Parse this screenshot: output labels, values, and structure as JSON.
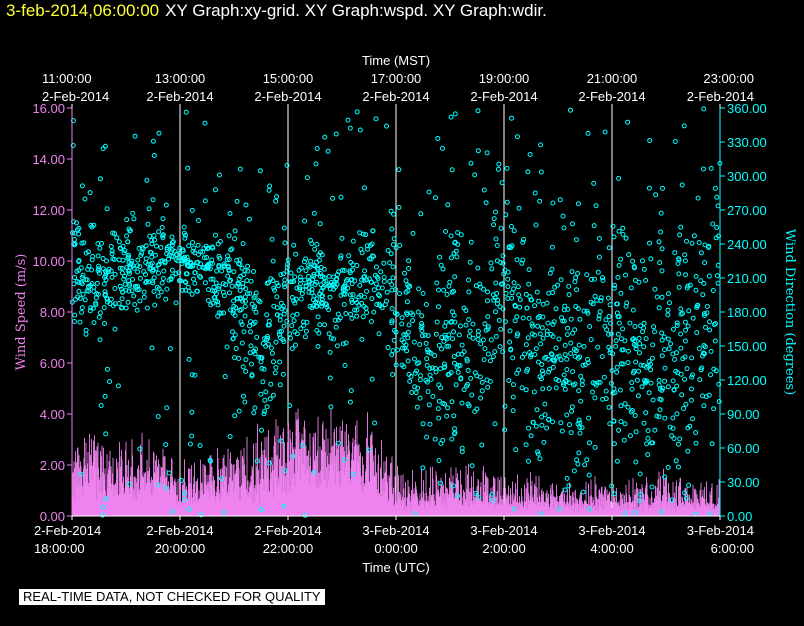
{
  "header": {
    "timestamp": "3-feb-2014,06:00:00",
    "graphs": "XY Graph:xy-grid.  XY Graph:wspd.  XY Graph:wdir."
  },
  "disclaimer": "REAL-TIME DATA, NOT CHECKED FOR QUALITY",
  "colors": {
    "background": "#000000",
    "speed": "#ee82ee",
    "direction": "#00ffff",
    "timestamp": "#ffff33",
    "text": "#ffffff"
  },
  "chart_data": {
    "type": "scatter",
    "top_axis": {
      "label": "Time (MST)",
      "ticks": [
        {
          "time": "11:00:00",
          "date": "2-Feb-2014"
        },
        {
          "time": "13:00:00",
          "date": "2-Feb-2014"
        },
        {
          "time": "15:00:00",
          "date": "2-Feb-2014"
        },
        {
          "time": "17:00:00",
          "date": "2-Feb-2014"
        },
        {
          "time": "19:00:00",
          "date": "2-Feb-2014"
        },
        {
          "time": "21:00:00",
          "date": "2-Feb-2014"
        },
        {
          "time": "23:00:00",
          "date": "2-Feb-2014"
        }
      ]
    },
    "bottom_axis": {
      "label": "Time (UTC)",
      "ticks": [
        {
          "date": "2-Feb-2014",
          "time": "18:00:00"
        },
        {
          "date": "2-Feb-2014",
          "time": "20:00:00"
        },
        {
          "date": "2-Feb-2014",
          "time": "22:00:00"
        },
        {
          "date": "3-Feb-2014",
          "time": "0:00:00"
        },
        {
          "date": "3-Feb-2014",
          "time": "2:00:00"
        },
        {
          "date": "3-Feb-2014",
          "time": "4:00:00"
        },
        {
          "date": "3-Feb-2014",
          "time": "6:00:00"
        }
      ],
      "range_hours_utc": [
        18,
        30
      ]
    },
    "left_axis": {
      "label": "Wind Speed (m/s)",
      "ylim": [
        0,
        16
      ],
      "ticks": [
        "0.00",
        "2.00",
        "4.00",
        "6.00",
        "8.00",
        "10.00",
        "12.00",
        "14.00",
        "16.00"
      ]
    },
    "right_axis": {
      "label": "Wind Direction (degrees)",
      "ylim": [
        0,
        360
      ],
      "ticks": [
        "0.00",
        "30.00",
        "60.00",
        "90.00",
        "120.00",
        "150.00",
        "180.00",
        "210.00",
        "240.00",
        "270.00",
        "300.00",
        "330.00",
        "360.00"
      ]
    },
    "grid": "vertical",
    "speed_profile": {
      "hours_utc": [
        18.0,
        18.5,
        19.0,
        19.5,
        20.0,
        20.5,
        21.0,
        21.5,
        22.0,
        22.5,
        23.0,
        23.5,
        24.0,
        24.5,
        25.0,
        25.5,
        26.0,
        26.5,
        27.0,
        27.5,
        28.0,
        28.5,
        29.0,
        29.5,
        30.0
      ],
      "base_ms": [
        1.6,
        2.2,
        1.6,
        1.8,
        1.2,
        1.4,
        1.5,
        1.3,
        2.8,
        2.8,
        3.0,
        2.8,
        0.8,
        0.7,
        0.9,
        1.0,
        0.7,
        0.8,
        0.6,
        0.5,
        0.6,
        0.5,
        0.6,
        0.6,
        0.7
      ],
      "peak_ms": [
        3.8,
        4.0,
        3.2,
        3.6,
        2.2,
        3.0,
        3.0,
        4.2,
        4.2,
        4.4,
        4.4,
        4.2,
        2.2,
        2.0,
        2.2,
        2.2,
        1.8,
        1.8,
        1.5,
        1.6,
        1.8,
        1.5,
        2.0,
        1.6,
        1.6
      ]
    },
    "direction_profile": {
      "hours_utc": [
        18.0,
        18.5,
        19.0,
        19.5,
        20.0,
        20.5,
        21.0,
        21.5,
        22.0,
        22.5,
        23.0,
        23.5,
        24.0,
        24.5,
        25.0,
        25.5,
        26.0,
        26.5,
        27.0,
        27.5,
        28.0,
        28.5,
        29.0,
        29.5,
        30.0
      ],
      "center_deg": [
        215,
        210,
        215,
        225,
        225,
        220,
        200,
        140,
        185,
        200,
        195,
        210,
        200,
        120,
        175,
        130,
        220,
        130,
        160,
        110,
        170,
        150,
        140,
        150,
        210
      ],
      "spread_deg": [
        40,
        40,
        35,
        40,
        25,
        25,
        40,
        60,
        45,
        35,
        40,
        40,
        60,
        70,
        80,
        90,
        70,
        90,
        80,
        100,
        90,
        100,
        100,
        100,
        80
      ]
    }
  }
}
